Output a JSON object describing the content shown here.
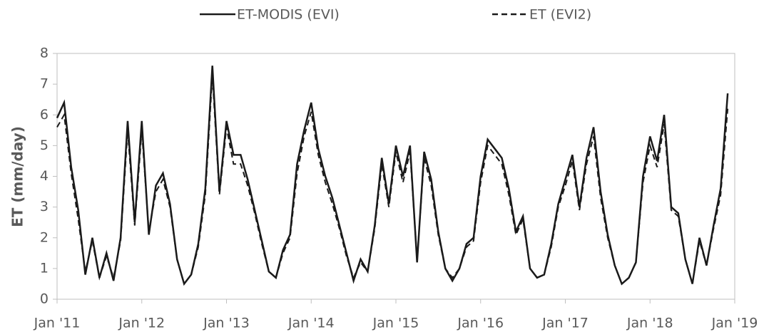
{
  "chart_data": {
    "type": "line",
    "y_label": "ET (mm/day)",
    "x": [
      "2011-01",
      "2011-02",
      "2011-03",
      "2011-04",
      "2011-05",
      "2011-06",
      "2011-07",
      "2011-08",
      "2011-09",
      "2011-10",
      "2011-11",
      "2011-12",
      "2012-01",
      "2012-02",
      "2012-03",
      "2012-04",
      "2012-05",
      "2012-06",
      "2012-07",
      "2012-08",
      "2012-09",
      "2012-10",
      "2012-11",
      "2012-12",
      "2013-01",
      "2013-02",
      "2013-03",
      "2013-04",
      "2013-05",
      "2013-06",
      "2013-07",
      "2013-08",
      "2013-09",
      "2013-10",
      "2013-11",
      "2013-12",
      "2014-01",
      "2014-02",
      "2014-03",
      "2014-04",
      "2014-05",
      "2014-06",
      "2014-07",
      "2014-08",
      "2014-09",
      "2014-10",
      "2014-11",
      "2014-12",
      "2015-01",
      "2015-02",
      "2015-03",
      "2015-04",
      "2015-05",
      "2015-06",
      "2015-07",
      "2015-08",
      "2015-09",
      "2015-10",
      "2015-11",
      "2015-12",
      "2016-01",
      "2016-02",
      "2016-03",
      "2016-04",
      "2016-05",
      "2016-06",
      "2016-07",
      "2016-08",
      "2016-09",
      "2016-10",
      "2016-11",
      "2016-12",
      "2017-01",
      "2017-02",
      "2017-03",
      "2017-04",
      "2017-05",
      "2017-06",
      "2017-07",
      "2017-08",
      "2017-09",
      "2017-10",
      "2017-11",
      "2017-12",
      "2018-01",
      "2018-02",
      "2018-03",
      "2018-04",
      "2018-05",
      "2018-06",
      "2018-07",
      "2018-08",
      "2018-09",
      "2018-10",
      "2018-11",
      "2018-12"
    ],
    "series": [
      {
        "name": "ET-MODIS (EVI)",
        "color": "#1a1a1a",
        "dash": false,
        "values": [
          5.9,
          6.4,
          4.3,
          2.9,
          0.8,
          2.0,
          0.7,
          1.5,
          0.6,
          2.0,
          5.8,
          2.5,
          5.8,
          2.1,
          3.7,
          4.1,
          3.1,
          1.3,
          0.5,
          0.8,
          1.8,
          3.6,
          7.6,
          3.5,
          5.8,
          4.7,
          4.7,
          3.9,
          2.9,
          1.9,
          0.9,
          0.7,
          1.6,
          2.1,
          4.4,
          5.5,
          6.4,
          4.9,
          4.0,
          3.3,
          2.4,
          1.5,
          0.6,
          1.3,
          0.9,
          2.4,
          4.6,
          3.1,
          5.0,
          4.0,
          5.0,
          1.2,
          4.8,
          3.9,
          2.2,
          1.0,
          0.6,
          1.0,
          1.8,
          2.0,
          4.0,
          5.2,
          4.9,
          4.6,
          3.6,
          2.2,
          2.7,
          1.0,
          0.7,
          0.8,
          1.8,
          3.1,
          3.9,
          4.7,
          3.0,
          4.6,
          5.6,
          3.5,
          2.1,
          1.1,
          0.5,
          0.7,
          1.2,
          4.0,
          5.3,
          4.5,
          6.0,
          3.0,
          2.8,
          1.3,
          0.5,
          2.0,
          1.1,
          2.4,
          3.6,
          6.7
        ]
      },
      {
        "name": "ET (EVI2)",
        "color": "#1a1a1a",
        "dash": true,
        "values": [
          5.6,
          6.0,
          4.1,
          2.6,
          0.9,
          1.9,
          0.7,
          1.4,
          0.7,
          1.9,
          5.5,
          2.4,
          5.5,
          2.2,
          3.5,
          3.9,
          3.0,
          1.3,
          0.5,
          0.8,
          1.7,
          3.4,
          7.3,
          3.4,
          5.6,
          4.4,
          4.4,
          3.7,
          2.8,
          1.8,
          0.9,
          0.7,
          1.5,
          2.0,
          4.1,
          5.3,
          6.1,
          4.7,
          3.8,
          3.1,
          2.3,
          1.4,
          0.7,
          1.2,
          0.9,
          2.3,
          4.4,
          3.0,
          4.8,
          3.8,
          4.8,
          1.3,
          4.6,
          3.7,
          2.1,
          1.0,
          0.7,
          1.0,
          1.7,
          1.9,
          3.8,
          5.0,
          4.7,
          4.4,
          3.4,
          2.1,
          2.6,
          1.0,
          0.7,
          0.8,
          1.7,
          3.0,
          3.7,
          4.5,
          2.9,
          4.4,
          5.3,
          3.3,
          2.0,
          1.1,
          0.5,
          0.7,
          1.2,
          3.8,
          5.0,
          4.3,
          5.7,
          2.9,
          2.7,
          1.3,
          0.5,
          1.9,
          1.1,
          2.3,
          3.4,
          6.2
        ]
      }
    ],
    "xlim": [
      "2011-01",
      "2019-01"
    ],
    "xticks": [
      {
        "value": "2011-01",
        "label": "Jan '11"
      },
      {
        "value": "2012-01",
        "label": "Jan '12"
      },
      {
        "value": "2013-01",
        "label": "Jan '13"
      },
      {
        "value": "2014-01",
        "label": "Jan '14"
      },
      {
        "value": "2015-01",
        "label": "Jan '15"
      },
      {
        "value": "2016-01",
        "label": "Jan '16"
      },
      {
        "value": "2017-01",
        "label": "Jan '17"
      },
      {
        "value": "2018-01",
        "label": "Jan '18"
      },
      {
        "value": "2019-01",
        "label": "Jan '19"
      }
    ],
    "ylim": [
      0,
      8
    ],
    "yticks": [
      0,
      1,
      2,
      3,
      4,
      5,
      6,
      7,
      8
    ],
    "legend": "top"
  }
}
